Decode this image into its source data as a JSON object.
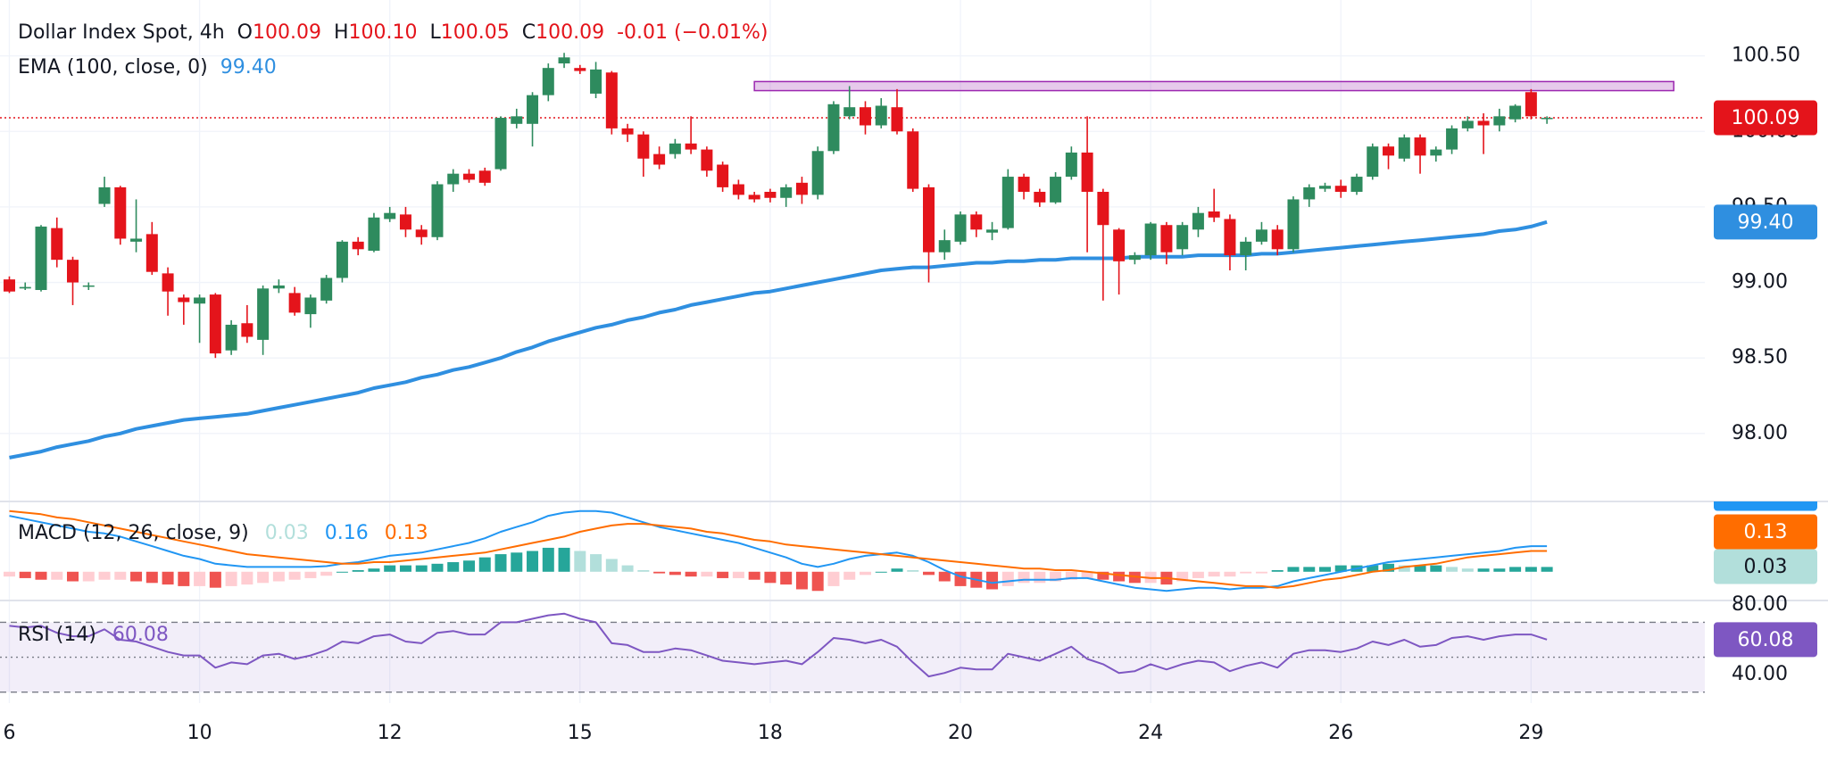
{
  "chart_data": [
    {
      "type": "candlestick",
      "title": "Dollar Index Spot, 4h",
      "ohlc_legend": [
        {
          "key": "O",
          "value": "100.09"
        },
        {
          "key": "H",
          "value": "100.10"
        },
        {
          "key": "L",
          "value": "100.05"
        },
        {
          "key": "C",
          "value": "100.09"
        }
      ],
      "change": "-0.01 (−0.01%)",
      "colors": {
        "up": "#2e8b5e",
        "down": "#e4141b"
      },
      "xlim": [
        -0.59,
        106.96
      ],
      "xticks": [
        {
          "value": 0,
          "label": "6"
        },
        {
          "value": 12,
          "label": "10"
        },
        {
          "value": 24,
          "label": "12"
        },
        {
          "value": 36,
          "label": "15"
        },
        {
          "value": 48,
          "label": "18"
        },
        {
          "value": 60,
          "label": "20"
        },
        {
          "value": 72,
          "label": "24"
        },
        {
          "value": 84,
          "label": "26"
        },
        {
          "value": 96,
          "label": "29"
        }
      ],
      "ylim": [
        97.55,
        100.87
      ],
      "yticks": [
        {
          "value": 100.5,
          "label": "100.50"
        },
        {
          "value": 100,
          "label": "100.00"
        },
        {
          "value": 99.5,
          "label": "99.50"
        },
        {
          "value": 99,
          "label": "99.00"
        },
        {
          "value": 98.5,
          "label": "98.50"
        },
        {
          "value": 98,
          "label": "98.00"
        }
      ],
      "grid": true,
      "open": [
        99.02,
        98.96,
        98.95,
        99.36,
        99.15,
        98.98,
        99.52,
        99.63,
        99.27,
        99.32,
        99.06,
        98.9,
        98.86,
        98.92,
        98.55,
        98.73,
        98.62,
        98.96,
        98.93,
        98.79,
        98.88,
        99.03,
        99.27,
        99.21,
        99.42,
        99.45,
        99.35,
        99.3,
        99.65,
        99.72,
        99.74,
        99.75,
        100.05,
        100.05,
        100.24,
        100.45,
        100.42,
        100.25,
        100.39,
        100.02,
        99.98,
        99.85,
        99.85,
        99.92,
        99.88,
        99.78,
        99.65,
        99.58,
        99.6,
        99.56,
        99.66,
        99.58,
        99.87,
        100.1,
        100.16,
        100.04,
        100.16,
        100.0,
        99.63,
        99.2,
        99.27,
        99.45,
        99.33,
        99.36,
        99.7,
        99.6,
        99.53,
        99.7,
        99.86,
        99.6,
        99.35,
        99.15,
        99.18,
        99.38,
        99.22,
        99.35,
        99.47,
        99.42,
        99.18,
        99.27,
        99.35,
        99.22,
        99.55,
        99.62,
        99.64,
        99.6,
        99.7,
        99.9,
        99.82,
        99.96,
        99.84,
        99.88,
        100.02,
        100.07,
        100.04,
        100.08,
        100.26,
        100.09
      ],
      "high": [
        99.04,
        99.0,
        99.38,
        99.43,
        99.17,
        99.0,
        99.7,
        99.64,
        99.55,
        99.4,
        99.1,
        98.92,
        98.92,
        98.93,
        98.75,
        98.85,
        98.98,
        99.02,
        98.97,
        98.92,
        99.05,
        99.28,
        99.3,
        99.46,
        99.5,
        99.5,
        99.38,
        99.67,
        99.75,
        99.75,
        99.76,
        100.1,
        100.15,
        100.26,
        100.45,
        100.52,
        100.44,
        100.46,
        100.4,
        100.05,
        100.0,
        99.9,
        99.95,
        100.1,
        99.9,
        99.8,
        99.68,
        99.6,
        99.62,
        99.65,
        99.7,
        99.9,
        100.2,
        100.3,
        100.2,
        100.22,
        100.28,
        100.02,
        99.65,
        99.35,
        99.47,
        99.47,
        99.4,
        99.75,
        99.72,
        99.62,
        99.73,
        99.9,
        100.1,
        99.62,
        99.36,
        99.2,
        99.4,
        99.4,
        99.4,
        99.5,
        99.62,
        99.45,
        99.3,
        99.4,
        99.38,
        99.57,
        99.65,
        99.66,
        99.68,
        99.72,
        99.92,
        99.92,
        99.98,
        99.98,
        99.9,
        100.04,
        100.1,
        100.12,
        100.15,
        100.18,
        100.28,
        100.1
      ],
      "low": [
        98.93,
        98.95,
        98.94,
        99.1,
        98.85,
        98.95,
        99.5,
        99.25,
        99.2,
        99.05,
        98.78,
        98.72,
        98.6,
        98.5,
        98.52,
        98.6,
        98.52,
        98.93,
        98.78,
        98.7,
        98.86,
        99.0,
        99.18,
        99.2,
        99.4,
        99.3,
        99.25,
        99.28,
        99.6,
        99.66,
        99.64,
        99.74,
        100.02,
        99.9,
        100.2,
        100.42,
        100.38,
        100.22,
        99.98,
        99.93,
        99.7,
        99.75,
        99.82,
        99.85,
        99.7,
        99.6,
        99.55,
        99.53,
        99.53,
        99.5,
        99.52,
        99.55,
        99.85,
        100.08,
        99.98,
        100.02,
        99.98,
        99.6,
        99.0,
        99.15,
        99.25,
        99.3,
        99.28,
        99.35,
        99.55,
        99.5,
        99.52,
        99.68,
        99.2,
        98.88,
        98.92,
        99.12,
        99.15,
        99.12,
        99.18,
        99.3,
        99.4,
        99.08,
        99.08,
        99.25,
        99.18,
        99.2,
        99.5,
        99.6,
        99.56,
        99.58,
        99.68,
        99.75,
        99.8,
        99.72,
        99.8,
        99.85,
        100.0,
        99.85,
        100.0,
        100.06,
        100.08,
        100.05
      ],
      "close": [
        98.94,
        98.97,
        99.37,
        99.15,
        99.0,
        98.98,
        99.63,
        99.29,
        99.29,
        99.07,
        98.94,
        98.87,
        98.9,
        98.53,
        98.72,
        98.64,
        98.96,
        98.98,
        98.8,
        98.9,
        99.03,
        99.27,
        99.22,
        99.43,
        99.46,
        99.35,
        99.3,
        99.65,
        99.72,
        99.68,
        99.66,
        100.09,
        100.1,
        100.24,
        100.42,
        100.49,
        100.4,
        100.41,
        100.02,
        99.98,
        99.82,
        99.78,
        99.92,
        99.88,
        99.74,
        99.63,
        99.58,
        99.55,
        99.56,
        99.63,
        99.58,
        99.87,
        100.18,
        100.16,
        100.04,
        100.17,
        100.0,
        99.62,
        99.2,
        99.28,
        99.45,
        99.35,
        99.35,
        99.7,
        99.6,
        99.53,
        99.7,
        99.86,
        99.6,
        99.38,
        99.14,
        99.18,
        99.39,
        99.2,
        99.38,
        99.46,
        99.43,
        99.18,
        99.27,
        99.35,
        99.22,
        99.55,
        99.63,
        99.64,
        99.6,
        99.7,
        99.9,
        99.84,
        99.96,
        99.84,
        99.88,
        100.02,
        100.07,
        100.04,
        100.1,
        100.17,
        100.1,
        100.09
      ],
      "ema": {
        "name": "EMA (100, close, 0)",
        "color": "#2f8fe0",
        "values": [
          97.84,
          97.86,
          97.88,
          97.91,
          97.93,
          97.95,
          97.98,
          98.0,
          98.03,
          98.05,
          98.07,
          98.09,
          98.1,
          98.11,
          98.12,
          98.13,
          98.15,
          98.17,
          98.19,
          98.21,
          98.23,
          98.25,
          98.27,
          98.3,
          98.32,
          98.34,
          98.37,
          98.39,
          98.42,
          98.44,
          98.47,
          98.5,
          98.54,
          98.57,
          98.61,
          98.64,
          98.67,
          98.7,
          98.72,
          98.75,
          98.77,
          98.8,
          98.82,
          98.85,
          98.87,
          98.89,
          98.91,
          98.93,
          98.94,
          98.96,
          98.98,
          99.0,
          99.02,
          99.04,
          99.06,
          99.08,
          99.09,
          99.1,
          99.1,
          99.11,
          99.12,
          99.13,
          99.13,
          99.14,
          99.14,
          99.15,
          99.15,
          99.16,
          99.16,
          99.16,
          99.16,
          99.17,
          99.17,
          99.17,
          99.17,
          99.18,
          99.18,
          99.18,
          99.18,
          99.19,
          99.19,
          99.2,
          99.21,
          99.22,
          99.23,
          99.24,
          99.25,
          99.26,
          99.27,
          99.28,
          99.29,
          99.3,
          99.31,
          99.32,
          99.34,
          99.35,
          99.37,
          99.4
        ],
        "last": {
          "value": 99.4,
          "label": "99.40"
        }
      },
      "last_price": 100.09,
      "zone": {
        "xlim": [
          47,
          105
        ],
        "ylim": [
          100.27,
          100.33
        ],
        "color": "#9c27b0"
      }
    },
    {
      "type": "macd",
      "title": "MACD (12, 26, close, 9)",
      "ylim": [
        -0.18,
        0.44
      ],
      "histogram": {
        "colors": {
          "above_rising": "#26a69a",
          "above_falling": "#b2dfdb",
          "below_falling": "#ef5350",
          "below_rising": "#ffcdd2"
        },
        "values": [
          -0.03,
          -0.04,
          -0.05,
          -0.05,
          -0.06,
          -0.06,
          -0.05,
          -0.05,
          -0.06,
          -0.07,
          -0.08,
          -0.09,
          -0.09,
          -0.1,
          -0.09,
          -0.08,
          -0.07,
          -0.06,
          -0.05,
          -0.04,
          -0.025,
          0.0,
          0.01,
          0.02,
          0.04,
          0.04,
          0.04,
          0.05,
          0.06,
          0.07,
          0.09,
          0.11,
          0.12,
          0.13,
          0.15,
          0.15,
          0.13,
          0.11,
          0.08,
          0.04,
          0.01,
          -0.01,
          -0.02,
          -0.03,
          -0.03,
          -0.04,
          -0.04,
          -0.05,
          -0.07,
          -0.08,
          -0.11,
          -0.12,
          -0.09,
          -0.05,
          -0.02,
          0.0,
          0.02,
          0.01,
          -0.02,
          -0.06,
          -0.09,
          -0.1,
          -0.11,
          -0.09,
          -0.07,
          -0.07,
          -0.06,
          -0.05,
          -0.04,
          -0.05,
          -0.06,
          -0.07,
          -0.07,
          -0.08,
          -0.06,
          -0.04,
          -0.03,
          -0.03,
          -0.01,
          -0.01,
          0.01,
          0.03,
          0.03,
          0.03,
          0.04,
          0.04,
          0.04,
          0.05,
          0.04,
          0.04,
          0.04,
          0.03,
          0.02,
          0.02,
          0.02,
          0.03,
          0.03,
          0.03
        ]
      },
      "series": [
        {
          "color": "#2196f3",
          "values": [
            0.35,
            0.33,
            0.31,
            0.29,
            0.27,
            0.25,
            0.24,
            0.22,
            0.19,
            0.16,
            0.13,
            0.1,
            0.08,
            0.05,
            0.04,
            0.03,
            0.03,
            0.03,
            0.03,
            0.03,
            0.035,
            0.05,
            0.06,
            0.08,
            0.1,
            0.11,
            0.12,
            0.14,
            0.16,
            0.18,
            0.21,
            0.25,
            0.28,
            0.31,
            0.35,
            0.37,
            0.38,
            0.38,
            0.37,
            0.34,
            0.31,
            0.28,
            0.26,
            0.24,
            0.22,
            0.2,
            0.18,
            0.15,
            0.12,
            0.09,
            0.05,
            0.03,
            0.05,
            0.08,
            0.1,
            0.11,
            0.12,
            0.1,
            0.06,
            0.01,
            -0.03,
            -0.05,
            -0.07,
            -0.06,
            -0.05,
            -0.05,
            -0.05,
            -0.04,
            -0.04,
            -0.06,
            -0.08,
            -0.1,
            -0.11,
            -0.12,
            -0.11,
            -0.1,
            -0.1,
            -0.11,
            -0.1,
            -0.1,
            -0.09,
            -0.06,
            -0.04,
            -0.02,
            0.0,
            0.02,
            0.04,
            0.06,
            0.07,
            0.08,
            0.09,
            0.1,
            0.11,
            0.12,
            0.13,
            0.15,
            0.16,
            0.16
          ]
        },
        {
          "color": "#ff6d00",
          "values": [
            0.38,
            0.37,
            0.36,
            0.34,
            0.33,
            0.31,
            0.29,
            0.27,
            0.25,
            0.23,
            0.21,
            0.19,
            0.17,
            0.15,
            0.13,
            0.11,
            0.1,
            0.09,
            0.08,
            0.07,
            0.06,
            0.05,
            0.05,
            0.06,
            0.06,
            0.07,
            0.08,
            0.09,
            0.1,
            0.11,
            0.12,
            0.14,
            0.16,
            0.18,
            0.2,
            0.22,
            0.25,
            0.27,
            0.29,
            0.3,
            0.3,
            0.29,
            0.28,
            0.27,
            0.25,
            0.24,
            0.22,
            0.2,
            0.19,
            0.17,
            0.16,
            0.15,
            0.14,
            0.13,
            0.12,
            0.11,
            0.1,
            0.09,
            0.08,
            0.07,
            0.06,
            0.05,
            0.04,
            0.03,
            0.02,
            0.02,
            0.01,
            0.01,
            0.0,
            -0.01,
            -0.02,
            -0.03,
            -0.04,
            -0.04,
            -0.05,
            -0.06,
            -0.07,
            -0.08,
            -0.09,
            -0.09,
            -0.1,
            -0.09,
            -0.07,
            -0.05,
            -0.04,
            -0.02,
            0.0,
            0.01,
            0.03,
            0.04,
            0.05,
            0.07,
            0.09,
            0.1,
            0.11,
            0.12,
            0.13,
            0.13
          ]
        }
      ]
    },
    {
      "type": "rsi",
      "title": "RSI (14)",
      "color": "#7e57c2",
      "ylim": [
        23.7,
        82.5
      ],
      "yticks": [
        {
          "value": 80,
          "label": "80.00"
        },
        {
          "value": 40,
          "label": "40.00"
        }
      ],
      "levels": [
        70,
        50,
        30
      ],
      "values": [
        68,
        67,
        68,
        64,
        62,
        62,
        66,
        60,
        59,
        56,
        53,
        51,
        51,
        44,
        47,
        46,
        51,
        52,
        49,
        51,
        54,
        59,
        58,
        62,
        63,
        59,
        58,
        64,
        65,
        63,
        63,
        70,
        70,
        72,
        74,
        75,
        72,
        70,
        58,
        57,
        53,
        53,
        55,
        54,
        51,
        48,
        47,
        46,
        47,
        48,
        46,
        53,
        61,
        60,
        58,
        60,
        56,
        47,
        39,
        41,
        44,
        43,
        43,
        52,
        50,
        48,
        52,
        56,
        49,
        46,
        41,
        42,
        46,
        43,
        46,
        48,
        47,
        42,
        45,
        47,
        44,
        52,
        54,
        54,
        53,
        55,
        59,
        57,
        60,
        56,
        57,
        61,
        62,
        60,
        62,
        63,
        63,
        60.08
      ]
    }
  ]
}
